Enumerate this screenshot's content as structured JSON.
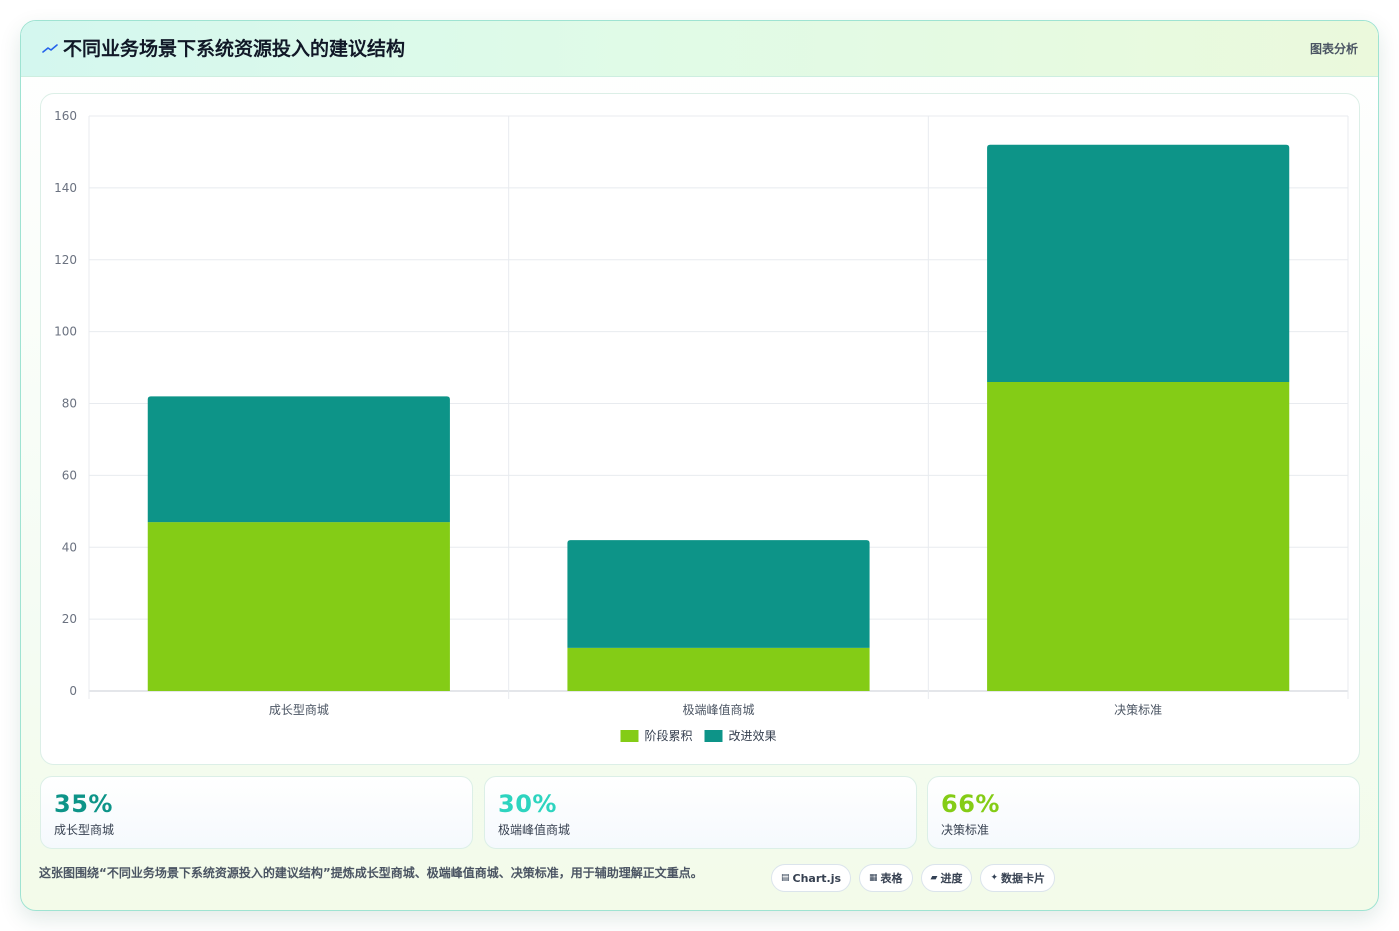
{
  "header": {
    "title": "不同业务场景下系统资源投入的建议结构",
    "tag": "图表分析"
  },
  "colors": {
    "accent_green": "#84cc16",
    "accent_teal": "#0d9488",
    "stat_teal": "#0d9488",
    "stat_cyan": "#2dd4bf",
    "stat_lime": "#84cc16"
  },
  "chart_data": {
    "type": "bar",
    "stacked": true,
    "categories": [
      "成长型商城",
      "极端峰值商城",
      "决策标准"
    ],
    "series": [
      {
        "name": "阶段累积",
        "values": [
          47,
          12,
          86
        ],
        "color": "#84cc16"
      },
      {
        "name": "改进效果",
        "values": [
          35,
          30,
          66
        ],
        "color": "#0d9488"
      }
    ],
    "ylim": [
      0,
      160
    ],
    "yticks": [
      0,
      20,
      40,
      60,
      80,
      100,
      120,
      140,
      160
    ],
    "grid": true,
    "legend": "bottom"
  },
  "stats": [
    {
      "value": "35%",
      "label": "成长型商城",
      "color": "#0d9488"
    },
    {
      "value": "30%",
      "label": "极端峰值商城",
      "color": "#2dd4bf"
    },
    {
      "value": "66%",
      "label": "决策标准",
      "color": "#84cc16"
    }
  ],
  "footer": {
    "note": "这张图围绕“不同业务场景下系统资源投入的建议结构”提炼成长型商城、极端峰值商城、决策标准，用于辅助理解正文重点。",
    "chips": [
      {
        "icon": "chart-icon",
        "glyph": "▤",
        "label": "Chart.js"
      },
      {
        "icon": "table-icon",
        "glyph": "▦",
        "label": "表格"
      },
      {
        "icon": "progress-icon",
        "glyph": "▰",
        "label": "进度"
      },
      {
        "icon": "card-icon",
        "glyph": "✦",
        "label": "数据卡片"
      }
    ]
  }
}
